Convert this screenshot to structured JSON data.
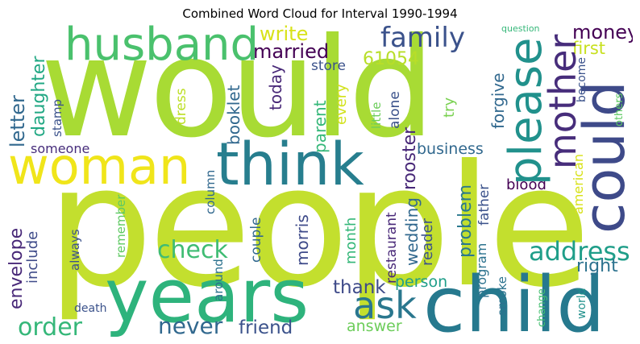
{
  "title": "Combined Word Cloud for Interval 1990-1994",
  "words": {
    "would": {
      "text": "would",
      "color": "#a8db34"
    },
    "people": {
      "text": "people",
      "color": "#c3df2e"
    },
    "years": {
      "text": "years",
      "color": "#2eb37c"
    },
    "child": {
      "text": "child",
      "color": "#26798e"
    },
    "woman": {
      "text": "woman",
      "color": "#f0e51a"
    },
    "think": {
      "text": "think",
      "color": "#277e8e"
    },
    "husband": {
      "text": "husband",
      "color": "#4ac16d"
    },
    "could": {
      "text": "could",
      "color": "#3e4a89"
    },
    "please": {
      "text": "please",
      "color": "#21918c"
    },
    "mother": {
      "text": "mother",
      "color": "#472d7b"
    },
    "ask": {
      "text": "ask",
      "color": "#2a778e"
    },
    "family": {
      "text": "family",
      "color": "#3b528b"
    },
    "married": {
      "text": "married",
      "color": "#440154"
    },
    "write": {
      "text": "write",
      "color": "#d8e219"
    },
    "money": {
      "text": "money",
      "color": "#440154"
    },
    "first": {
      "text": "first",
      "color": "#c8e020"
    },
    "n61054": {
      "text": "61054",
      "color": "#b8de29"
    },
    "store": {
      "text": "store",
      "color": "#3b528b"
    },
    "question": {
      "text": "question",
      "color": "#35b779"
    },
    "address": {
      "text": "address",
      "color": "#1f9e89"
    },
    "check": {
      "text": "check",
      "color": "#3fbc73"
    },
    "order": {
      "text": "order",
      "color": "#35b779"
    },
    "never": {
      "text": "never",
      "color": "#31688e"
    },
    "friend": {
      "text": "friend",
      "color": "#3b528b"
    },
    "thank": {
      "text": "thank",
      "color": "#3e4a89"
    },
    "person": {
      "text": "person",
      "color": "#1f9e89"
    },
    "right": {
      "text": "right",
      "color": "#2c728e"
    },
    "business": {
      "text": "business",
      "color": "#31688e"
    },
    "blood": {
      "text": "blood",
      "color": "#440154"
    },
    "someone": {
      "text": "someone",
      "color": "#472d7b"
    },
    "answer": {
      "text": "answer",
      "color": "#6ccd5a"
    },
    "death": {
      "text": "death",
      "color": "#3b528b"
    },
    "letter": {
      "text": "letter",
      "color": "#31688e"
    },
    "daughter": {
      "text": "daughter",
      "color": "#22a884"
    },
    "stamp": {
      "text": "stamp",
      "color": "#3b528b"
    },
    "booklet": {
      "text": "booklet",
      "color": "#31688e"
    },
    "today": {
      "text": "today",
      "color": "#482878"
    },
    "dress": {
      "text": "dress",
      "color": "#bddf26"
    },
    "parent": {
      "text": "parent",
      "color": "#35b779"
    },
    "every": {
      "text": "every",
      "color": "#d2e21b"
    },
    "little": {
      "text": "little",
      "color": "#6ccd5a"
    },
    "alone": {
      "text": "alone",
      "color": "#3b528b"
    },
    "rooster": {
      "text": "rooster",
      "color": "#482878"
    },
    "try": {
      "text": "try",
      "color": "#7ad151"
    },
    "forgive": {
      "text": "forgive",
      "color": "#31688e"
    },
    "become": {
      "text": "become",
      "color": "#3b528b"
    },
    "others": {
      "text": "others",
      "color": "#5ec962"
    },
    "envelope": {
      "text": "envelope",
      "color": "#482878"
    },
    "include": {
      "text": "include",
      "color": "#3e4a89"
    },
    "always": {
      "text": "always",
      "color": "#3b528b"
    },
    "remember": {
      "text": "remember",
      "color": "#5ec962"
    },
    "column": {
      "text": "column",
      "color": "#31688e"
    },
    "around": {
      "text": "around",
      "color": "#2c728e"
    },
    "couple": {
      "text": "couple",
      "color": "#31688e"
    },
    "morris": {
      "text": "morris",
      "color": "#3e4a89"
    },
    "month": {
      "text": "month",
      "color": "#35b779"
    },
    "restaurant": {
      "text": "restaurant",
      "color": "#482878"
    },
    "wedding": {
      "text": "wedding",
      "color": "#31688e"
    },
    "reader": {
      "text": "reader",
      "color": "#3b528b"
    },
    "problem": {
      "text": "problem",
      "color": "#2a788e"
    },
    "program": {
      "text": "program",
      "color": "#2c728e"
    },
    "father": {
      "text": "father",
      "color": "#3b528b"
    },
    "smoke": {
      "text": "smoke",
      "color": "#2c728e"
    },
    "change": {
      "text": "change",
      "color": "#44bf70"
    },
    "american": {
      "text": "american",
      "color": "#d8e219"
    },
    "world": {
      "text": "world",
      "color": "#21918c"
    }
  }
}
